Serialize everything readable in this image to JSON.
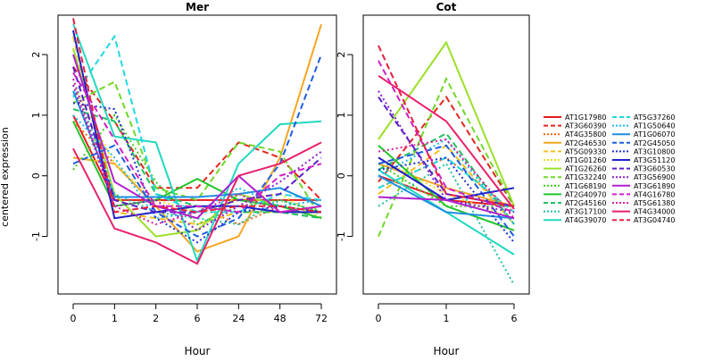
{
  "ylabel": "centered expression",
  "chart_data": [
    {
      "type": "line",
      "title": "Mer",
      "xlabel": "Hour",
      "ylabel": "centered expression",
      "x": [
        "0",
        "1",
        "2",
        "6",
        "24",
        "48",
        "72"
      ],
      "ylim": [
        -1.95,
        2.65
      ],
      "yticks": [
        -1,
        0,
        1,
        2
      ],
      "grid": false,
      "series": [
        {
          "name": "AT1G17980",
          "values": [
            1.0,
            -0.4,
            -0.4,
            -0.4,
            -0.4,
            -0.4,
            -0.4
          ]
        },
        {
          "name": "AT3G60390",
          "values": [
            1.8,
            0.9,
            -0.2,
            -0.2,
            0.55,
            0.3,
            -0.4
          ]
        },
        {
          "name": "AT4G35800",
          "values": [
            0.9,
            0.2,
            -0.5,
            -0.5,
            -0.8,
            -0.5,
            -0.6
          ]
        },
        {
          "name": "AT2G46530",
          "values": [
            0.3,
            0.2,
            -0.5,
            -1.25,
            -1.0,
            0.3,
            2.5
          ]
        },
        {
          "name": "AT5G09330",
          "values": [
            2.3,
            -0.6,
            -0.7,
            -0.8,
            -0.6,
            -0.6,
            -0.6
          ]
        },
        {
          "name": "AT1G01260",
          "values": [
            1.5,
            0.2,
            -0.4,
            -0.6,
            -0.4,
            -0.3,
            -0.7
          ]
        },
        {
          "name": "AT1G26260",
          "values": [
            2.1,
            -0.3,
            -1.0,
            -0.9,
            -0.3,
            -0.5,
            -0.6
          ]
        },
        {
          "name": "AT1G32240",
          "values": [
            1.2,
            1.55,
            -0.2,
            -0.4,
            0.55,
            0.4,
            -0.7
          ]
        },
        {
          "name": "AT1G68190",
          "values": [
            0.1,
            1.0,
            -0.1,
            -0.8,
            -0.5,
            -0.4,
            -0.6
          ]
        },
        {
          "name": "AT2G40970",
          "values": [
            0.9,
            -0.5,
            -0.4,
            -0.05,
            -0.4,
            -0.5,
            -0.7
          ]
        },
        {
          "name": "AT2G45160",
          "values": [
            1.1,
            0.9,
            -0.3,
            -0.5,
            -0.6,
            -0.6,
            -0.7
          ]
        },
        {
          "name": "AT3G17100",
          "values": [
            1.6,
            -0.3,
            -0.6,
            -0.7,
            -0.8,
            -0.4,
            -0.6
          ]
        },
        {
          "name": "AT4G39070",
          "values": [
            2.5,
            0.65,
            0.55,
            -1.4,
            0.2,
            0.85,
            0.9
          ]
        },
        {
          "name": "AT5G37260",
          "values": [
            1.3,
            2.3,
            -0.3,
            -0.6,
            -0.6,
            -0.3,
            -0.4
          ]
        },
        {
          "name": "AT1G50640",
          "values": [
            1.0,
            0.3,
            -0.7,
            -0.6,
            -0.2,
            -0.5,
            -0.4
          ]
        },
        {
          "name": "AT1G06070",
          "values": [
            1.4,
            -0.35,
            -0.35,
            -0.35,
            -0.3,
            -0.2,
            -0.5
          ]
        },
        {
          "name": "AT2G45050",
          "values": [
            0.2,
            0.5,
            -0.6,
            -1.0,
            -0.7,
            0.2,
            2.0
          ]
        },
        {
          "name": "AT3G10800",
          "values": [
            1.2,
            1.1,
            -0.7,
            -1.1,
            -0.6,
            -0.5,
            -0.6
          ]
        },
        {
          "name": "AT3G51120",
          "values": [
            2.4,
            -0.7,
            -0.6,
            -0.5,
            -0.5,
            -0.6,
            -0.6
          ]
        },
        {
          "name": "AT3G60530",
          "values": [
            1.8,
            -0.4,
            -0.6,
            -0.6,
            -0.4,
            -0.3,
            0.3
          ]
        },
        {
          "name": "AT3G56900",
          "values": [
            1.5,
            -0.5,
            -0.4,
            -0.9,
            -0.5,
            -0.1,
            0.4
          ]
        },
        {
          "name": "AT3G61890",
          "values": [
            2.0,
            -0.1,
            -0.5,
            -0.7,
            0.0,
            -0.6,
            -0.5
          ]
        },
        {
          "name": "AT4G16780",
          "values": [
            1.7,
            0.6,
            -0.5,
            -0.5,
            -0.6,
            0.0,
            0.2
          ]
        },
        {
          "name": "AT5G61380",
          "values": [
            1.6,
            -0.5,
            -0.8,
            -0.6,
            -0.3,
            -0.6,
            -0.5
          ]
        },
        {
          "name": "AT4G34000",
          "values": [
            0.45,
            -0.87,
            -1.1,
            -1.45,
            0.0,
            0.2,
            0.55
          ]
        },
        {
          "name": "AT3G04740",
          "values": [
            2.6,
            -0.6,
            -0.5,
            -0.6,
            -0.5,
            -0.5,
            -0.6
          ]
        }
      ]
    },
    {
      "type": "line",
      "title": "Cot",
      "xlabel": "Hour",
      "x": [
        "0",
        "1",
        "6"
      ],
      "ylim": [
        -1.95,
        2.65
      ],
      "yticks": [
        -1,
        0,
        1,
        2
      ],
      "grid": false,
      "series": [
        {
          "name": "AT1G17980",
          "values": [
            0.0,
            -0.4,
            -0.5
          ]
        },
        {
          "name": "AT3G60390",
          "values": [
            -0.1,
            1.3,
            -0.5
          ]
        },
        {
          "name": "AT4G35800",
          "values": [
            -0.2,
            0.3,
            -0.6
          ]
        },
        {
          "name": "AT2G46530",
          "values": [
            0.2,
            -0.2,
            -0.5
          ]
        },
        {
          "name": "AT5G09330",
          "values": [
            -0.3,
            0.5,
            -0.8
          ]
        },
        {
          "name": "AT1G01260",
          "values": [
            0.3,
            -0.3,
            -0.7
          ]
        },
        {
          "name": "AT1G26260",
          "values": [
            0.6,
            2.2,
            -0.5
          ]
        },
        {
          "name": "AT1G32240",
          "values": [
            -1.0,
            1.6,
            -0.5
          ]
        },
        {
          "name": "AT1G68190",
          "values": [
            0.2,
            -0.5,
            -0.5
          ]
        },
        {
          "name": "AT2G40970",
          "values": [
            0.5,
            -0.5,
            -0.9
          ]
        },
        {
          "name": "AT2G45160",
          "values": [
            0.1,
            0.7,
            -0.8
          ]
        },
        {
          "name": "AT3G17100",
          "values": [
            -0.5,
            0.2,
            -1.8
          ]
        },
        {
          "name": "AT4G39070",
          "values": [
            0.1,
            -0.6,
            -1.3
          ]
        },
        {
          "name": "AT5G37260",
          "values": [
            -0.2,
            0.3,
            -0.6
          ]
        },
        {
          "name": "AT1G50640",
          "values": [
            0.0,
            0.6,
            -0.8
          ]
        },
        {
          "name": "AT1G06070",
          "values": [
            0.0,
            -0.6,
            -0.7
          ]
        },
        {
          "name": "AT2G45050",
          "values": [
            0.2,
            0.5,
            -1.0
          ]
        },
        {
          "name": "AT3G10800",
          "values": [
            0.1,
            0.3,
            -1.1
          ]
        },
        {
          "name": "AT3G51120",
          "values": [
            0.3,
            -0.4,
            -0.2
          ]
        },
        {
          "name": "AT3G60530",
          "values": [
            1.3,
            -0.3,
            -0.5
          ]
        },
        {
          "name": "AT3G56900",
          "values": [
            1.4,
            -0.4,
            -0.6
          ]
        },
        {
          "name": "AT3G61890",
          "values": [
            -0.35,
            -0.4,
            -0.7
          ]
        },
        {
          "name": "AT4G16780",
          "values": [
            1.9,
            -0.2,
            -0.6
          ]
        },
        {
          "name": "AT5G61380",
          "values": [
            0.4,
            0.6,
            -0.7
          ]
        },
        {
          "name": "AT4G34000",
          "values": [
            1.65,
            0.9,
            -0.55
          ]
        },
        {
          "name": "AT3G04740",
          "values": [
            2.15,
            -0.3,
            -0.5
          ]
        }
      ]
    }
  ],
  "legend": {
    "placement": "right",
    "entries": [
      {
        "name": "AT1G17980",
        "color": "#e41a1c",
        "dash": "solid"
      },
      {
        "name": "AT3G60390",
        "color": "#e4261c",
        "dash": "dash"
      },
      {
        "name": "AT4G35800",
        "color": "#f06414",
        "dash": "dot"
      },
      {
        "name": "AT2G46530",
        "color": "#f5a623",
        "dash": "solid"
      },
      {
        "name": "AT5G09330",
        "color": "#f0c020",
        "dash": "dash"
      },
      {
        "name": "AT1G01260",
        "color": "#e8e020",
        "dash": "dot"
      },
      {
        "name": "AT1G26260",
        "color": "#9be028",
        "dash": "solid"
      },
      {
        "name": "AT1G32240",
        "color": "#6ed828",
        "dash": "dash"
      },
      {
        "name": "AT1G68190",
        "color": "#44cc22",
        "dash": "dot"
      },
      {
        "name": "AT2G40970",
        "color": "#22c42a",
        "dash": "solid"
      },
      {
        "name": "AT2G45160",
        "color": "#22c060",
        "dash": "dash"
      },
      {
        "name": "AT3G17100",
        "color": "#22c0a0",
        "dash": "dot"
      },
      {
        "name": "AT4G39070",
        "color": "#20d8c0",
        "dash": "solid"
      },
      {
        "name": "AT5G37260",
        "color": "#20d8e0",
        "dash": "dash"
      },
      {
        "name": "AT1G50640",
        "color": "#20b8e8",
        "dash": "dot"
      },
      {
        "name": "AT1G06070",
        "color": "#1e8ee0",
        "dash": "solid"
      },
      {
        "name": "AT2G45050",
        "color": "#1e5ee0",
        "dash": "dash"
      },
      {
        "name": "AT3G10800",
        "color": "#1e30d8",
        "dash": "dot"
      },
      {
        "name": "AT3G51120",
        "color": "#2020c8",
        "dash": "solid"
      },
      {
        "name": "AT3G60530",
        "color": "#5a20c8",
        "dash": "dash"
      },
      {
        "name": "AT3G56900",
        "color": "#8a20c8",
        "dash": "dot"
      },
      {
        "name": "AT3G61890",
        "color": "#b020d0",
        "dash": "solid"
      },
      {
        "name": "AT4G16780",
        "color": "#d020c8",
        "dash": "dash"
      },
      {
        "name": "AT5G61380",
        "color": "#e020a0",
        "dash": "dot"
      },
      {
        "name": "AT4G34000",
        "color": "#e8206c",
        "dash": "solid"
      },
      {
        "name": "AT3G04740",
        "color": "#e82040",
        "dash": "dash"
      }
    ]
  }
}
